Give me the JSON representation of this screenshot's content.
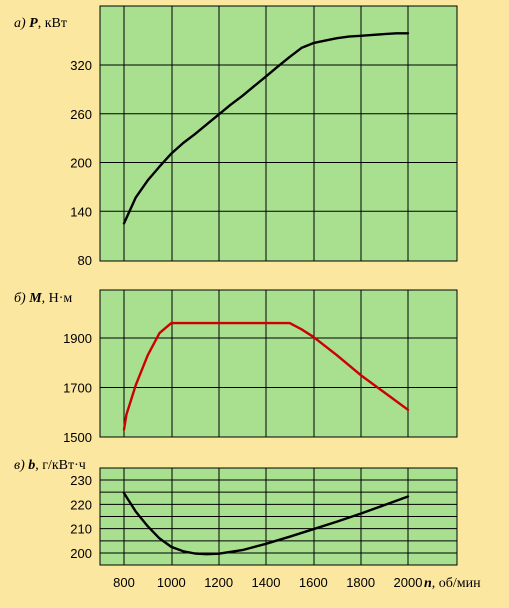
{
  "chart_data": [
    {
      "type": "line",
      "panel_label": "а)",
      "ylabel_symbol": "P",
      "ylabel_unit": ", кВт",
      "x": [
        800,
        850,
        900,
        950,
        1000,
        1050,
        1100,
        1150,
        1200,
        1250,
        1300,
        1350,
        1400,
        1450,
        1500,
        1550,
        1600,
        1650,
        1700,
        1750,
        1800,
        1850,
        1900,
        1950,
        2000
      ],
      "series": [
        {
          "values": [
            125,
            157,
            178,
            195,
            211,
            224,
            235,
            247,
            259,
            271,
            282,
            294,
            306,
            318,
            330,
            341,
            347,
            350,
            353,
            355,
            356,
            357,
            358,
            359,
            359
          ],
          "color": "#000000"
        }
      ],
      "yticks": [
        80,
        140,
        200,
        260,
        320
      ],
      "ylim": [
        80,
        382
      ],
      "xlim": [
        800,
        2000
      ],
      "grid": true,
      "background": "#a8e090"
    },
    {
      "type": "line",
      "panel_label": "б)",
      "ylabel_symbol": "M",
      "ylabel_unit": ", Н·м",
      "x": [
        800,
        810,
        850,
        900,
        950,
        1000,
        1100,
        1200,
        1300,
        1400,
        1500,
        1550,
        1600,
        1700,
        1800,
        1900,
        2000
      ],
      "series": [
        {
          "values": [
            1530,
            1590,
            1710,
            1830,
            1920,
            1960,
            1960,
            1960,
            1960,
            1960,
            1960,
            1935,
            1905,
            1830,
            1750,
            1680,
            1610
          ],
          "color": "#cc0000"
        }
      ],
      "yticks": [
        1500,
        1700,
        1900
      ],
      "ylim": [
        1500,
        2060
      ],
      "xlim": [
        800,
        2000
      ],
      "grid": true,
      "background": "#a8e090"
    },
    {
      "type": "line",
      "panel_label": "в)",
      "ylabel_symbol": "b",
      "ylabel_unit": ", г/кВт·ч",
      "x": [
        800,
        850,
        900,
        950,
        1000,
        1050,
        1100,
        1150,
        1200,
        1300,
        1400,
        1500,
        1600,
        1700,
        1800,
        1900,
        2000
      ],
      "series": [
        {
          "values": [
            224.6,
            217,
            211,
            206,
            202.5,
            200.7,
            199.8,
            199.5,
            199.7,
            201.2,
            203.8,
            206.7,
            209.8,
            212.9,
            216.2,
            219.7,
            223.2
          ],
          "color": "#000000"
        }
      ],
      "yticks": [
        200,
        210,
        220,
        230
      ],
      "ylim": [
        195,
        233
      ],
      "xlim": [
        800,
        2000
      ],
      "grid": true,
      "background": "#a8e090"
    }
  ],
  "x_axis": {
    "ticks": [
      800,
      1000,
      1200,
      1400,
      1600,
      1800,
      2000
    ],
    "label_symbol": "n",
    "label_unit": ", об/мин"
  },
  "colors": {
    "page_background": "#fce7a0",
    "plot_background": "#a8e090",
    "grid": "#000000"
  }
}
